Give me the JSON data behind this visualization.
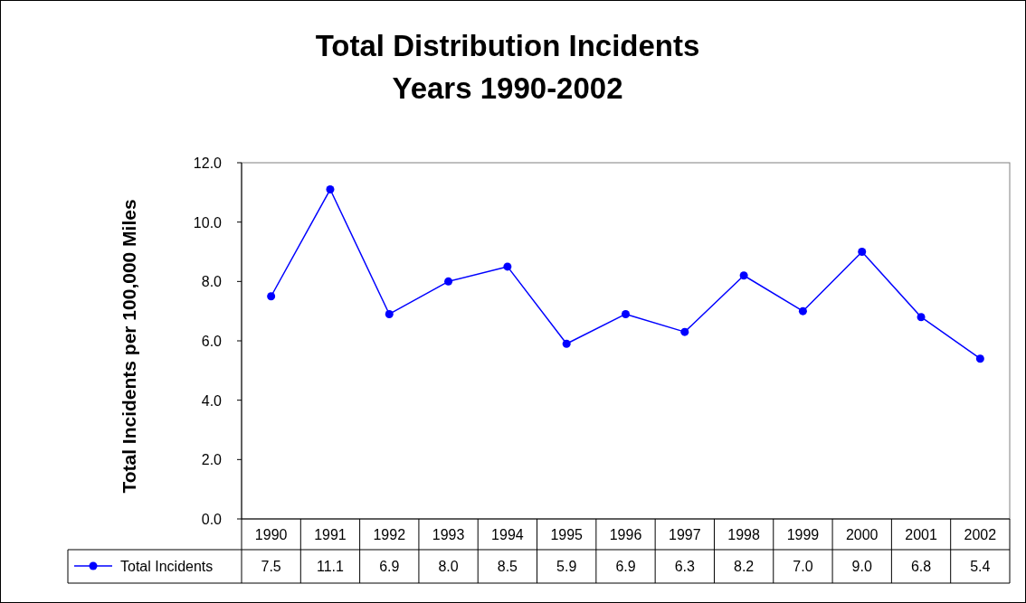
{
  "chart_data": {
    "type": "line",
    "title": "Total Distribution Incidents",
    "subtitle": "Years 1990-2002",
    "ylabel": "Total Incidents per 100,000 Miles",
    "categories": [
      "1990",
      "1991",
      "1992",
      "1993",
      "1994",
      "1995",
      "1996",
      "1997",
      "1998",
      "1999",
      "2000",
      "2001",
      "2002"
    ],
    "series": [
      {
        "name": "Total Incidents",
        "color": "#0000ff",
        "values": [
          7.5,
          11.1,
          6.9,
          8.0,
          8.5,
          5.9,
          6.9,
          6.3,
          8.2,
          7.0,
          9.0,
          6.8,
          5.4
        ],
        "value_labels": [
          "7.5",
          "11.1",
          "6.9",
          "8.0",
          "8.5",
          "5.9",
          "6.9",
          "6.3",
          "8.2",
          "7.0",
          "9.0",
          "6.8",
          "5.4"
        ]
      }
    ],
    "ylim": [
      0,
      12
    ],
    "yticks": [
      {
        "value": 0,
        "label": "0.0"
      },
      {
        "value": 2,
        "label": "2.0"
      },
      {
        "value": 4,
        "label": "4.0"
      },
      {
        "value": 6,
        "label": "6.0"
      },
      {
        "value": 8,
        "label": "8.0"
      },
      {
        "value": 10,
        "label": "10.0"
      },
      {
        "value": 12,
        "label": "12.0"
      }
    ],
    "grid": false,
    "legend": "bottom",
    "marker": "circle",
    "line_style": "solid"
  }
}
